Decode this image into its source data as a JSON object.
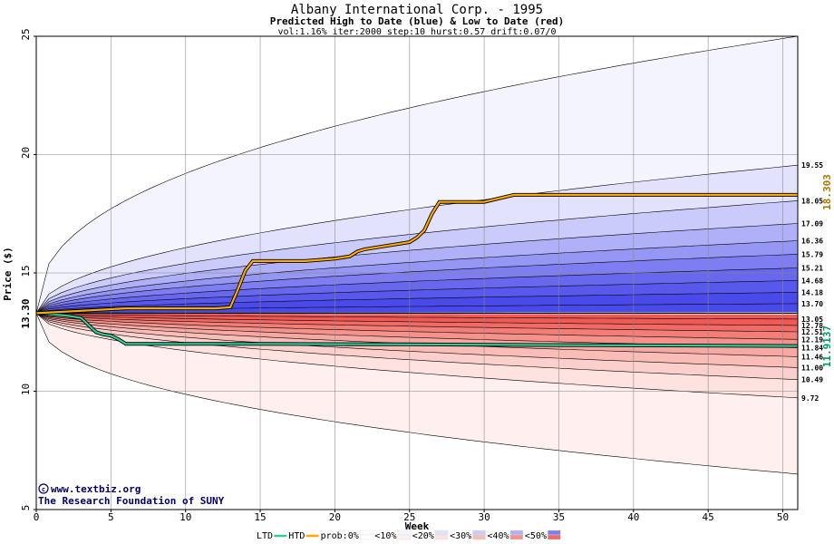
{
  "chart_data": {
    "type": "area",
    "title": "Albany International Corp. - 1995",
    "subtitle": "Predicted High to Date (blue) &  Low to Date (red)",
    "params": "vol:1.16% iter:2000 step:10 hurst:0.57 drift:0.07/0",
    "xlabel": "Week",
    "ylabel": "Price ($)",
    "xlim": [
      0,
      51
    ],
    "ylim": [
      5,
      25
    ],
    "x_ticks": [
      0,
      5,
      10,
      15,
      20,
      25,
      30,
      35,
      40,
      45,
      50
    ],
    "y_ticks": [
      5,
      10,
      15,
      20,
      25
    ],
    "grid": true,
    "start_price": 13.3,
    "start_price_label": "13.30",
    "upper_band_values": [
      25.0,
      19.55,
      18.05,
      17.09,
      16.36,
      15.79,
      15.21,
      14.68,
      14.18,
      13.7
    ],
    "lower_band_values": [
      13.05,
      12.78,
      12.51,
      12.19,
      11.84,
      11.46,
      11.0,
      10.49,
      9.72,
      6.5
    ],
    "right_labels": [
      "19.55",
      "18.05",
      "17.09",
      "16.36",
      "15.79",
      "15.21",
      "14.68",
      "14.18",
      "13.70",
      "13.05",
      "12.78",
      "12.51",
      "12.19",
      "11.84",
      "11.46",
      "11.00",
      "10.49",
      "9.72"
    ],
    "htd_series": {
      "name": "HTD",
      "color": "#ffaa00",
      "final_label": "18.303",
      "x": [
        0,
        3,
        6,
        9,
        12,
        13,
        13.5,
        14,
        14.5,
        15,
        18,
        19,
        20,
        21,
        21.5,
        22,
        23,
        24,
        25,
        25.5,
        26,
        26.5,
        27,
        28,
        30,
        32,
        34,
        51
      ],
      "y": [
        13.3,
        13.4,
        13.5,
        13.5,
        13.5,
        13.55,
        14.3,
        15.1,
        15.5,
        15.5,
        15.5,
        15.55,
        15.6,
        15.7,
        15.9,
        16.0,
        16.1,
        16.2,
        16.3,
        16.5,
        16.8,
        17.5,
        18.0,
        18.0,
        18.0,
        18.3,
        18.3,
        18.3
      ]
    },
    "ltd_series": {
      "name": "LTD",
      "color": "#33cc99",
      "final_label": "11.9137",
      "x": [
        0,
        2,
        3,
        3.5,
        4,
        4.5,
        5,
        5.5,
        6,
        8,
        15,
        25,
        35,
        51
      ],
      "y": [
        13.3,
        13.2,
        13.1,
        12.8,
        12.5,
        12.4,
        12.35,
        12.2,
        12.0,
        12.0,
        12.0,
        11.98,
        11.95,
        11.91
      ]
    },
    "legend": [
      "LTD",
      "HTD",
      "prob:0%",
      "<10%",
      "<20%",
      "<30%",
      "<40%",
      "<50%"
    ]
  },
  "watermark": {
    "url": "www.textbiz.org",
    "org": "The Research Foundation of SUNY"
  },
  "colors": {
    "blue_bands": [
      "#f4f4fe",
      "#e2e2fd",
      "#cacafb",
      "#b0b0f8",
      "#9696f5",
      "#7e7ef2",
      "#6868ef",
      "#5858ed",
      "#4a4aea"
    ],
    "red_bands": [
      "#fff0ef",
      "#fde2e0",
      "#fbd0cc",
      "#f9bcb7",
      "#f7a8a2",
      "#f5928c",
      "#f37e78",
      "#f16a65",
      "#ef5a55"
    ]
  }
}
